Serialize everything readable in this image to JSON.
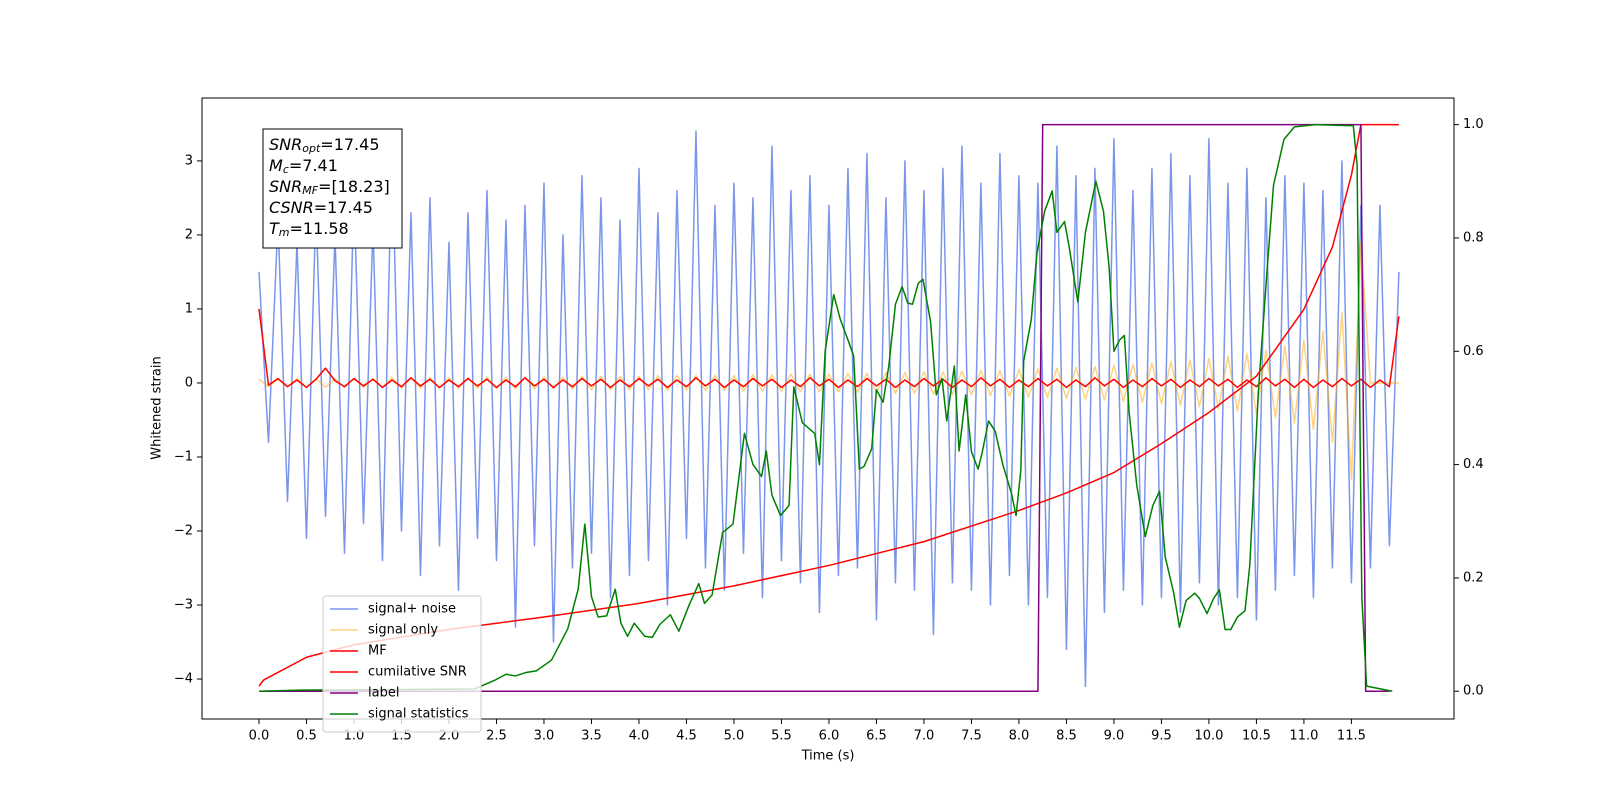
{
  "chart_data": {
    "type": "line",
    "xlabel": "Time (s)",
    "ylabel": "Whitened strain",
    "xlim": [
      -0.6,
      12.58
    ],
    "ylim": [
      -4.54,
      3.85
    ],
    "y2lim": [
      -0.049,
      1.047
    ],
    "xticks": [
      {
        "value": 0,
        "label": "0.0"
      },
      0.5,
      {
        "value": 1,
        "label": "1.0"
      },
      1.5,
      {
        "value": 2,
        "label": "2.0"
      },
      2.5,
      {
        "value": 3,
        "label": "3.0"
      },
      3.5,
      {
        "value": 4,
        "label": "4.0"
      },
      4.5,
      {
        "value": 5,
        "label": "5.0"
      },
      5.5,
      {
        "value": 6,
        "label": "6.0"
      },
      6.5,
      {
        "value": 7,
        "label": "7.0"
      },
      7.5,
      {
        "value": 8,
        "label": "8.0"
      },
      8.5,
      {
        "value": 9,
        "label": "9.0"
      },
      9.5,
      {
        "value": 10,
        "label": "10.0"
      },
      10.5,
      {
        "value": 11,
        "label": "11.0"
      },
      11.5
    ],
    "yticks": [
      {
        "value": -4,
        "label": "−4"
      },
      {
        "value": -3,
        "label": "−3"
      },
      {
        "value": -2,
        "label": "−2"
      },
      {
        "value": -1,
        "label": "−1"
      },
      0,
      1,
      2,
      3
    ],
    "y2ticks": [
      {
        "value": 0,
        "label": "0.0"
      },
      0.2,
      0.4,
      0.6,
      0.8,
      {
        "value": 1,
        "label": "1.0"
      }
    ],
    "annotations": [
      {
        "main": "SNR",
        "sub": "opt",
        "rest": "=17.45"
      },
      {
        "main": "M",
        "sub": "c",
        "rest": "=7.41"
      },
      {
        "main": "SNR",
        "sub": "MF",
        "rest": "=[18.23]"
      },
      {
        "main": "CSNR",
        "rest": "=17.45"
      },
      {
        "main": "T",
        "sub": "m",
        "rest": "=11.58"
      }
    ],
    "legend": "lower left",
    "x": [
      0.0,
      0.1,
      0.2,
      0.3,
      0.4,
      0.5,
      0.6,
      0.7,
      0.8,
      0.9,
      1.0,
      1.1,
      1.2,
      1.3,
      1.4,
      1.5,
      1.6,
      1.7,
      1.8,
      1.9,
      2.0,
      2.1,
      2.2,
      2.3,
      2.4,
      2.5,
      2.6,
      2.7,
      2.8,
      2.9,
      3.0,
      3.1,
      3.2,
      3.3,
      3.4,
      3.5,
      3.6,
      3.7,
      3.8,
      3.9,
      4.0,
      4.1,
      4.2,
      4.3,
      4.4,
      4.5,
      4.6,
      4.7,
      4.8,
      4.9,
      5.0,
      5.1,
      5.2,
      5.3,
      5.4,
      5.5,
      5.6,
      5.7,
      5.8,
      5.9,
      6.0,
      6.1,
      6.2,
      6.3,
      6.4,
      6.5,
      6.6,
      6.7,
      6.8,
      6.9,
      7.0,
      7.1,
      7.2,
      7.3,
      7.4,
      7.5,
      7.6,
      7.7,
      7.8,
      7.9,
      8.0,
      8.1,
      8.2,
      8.3,
      8.4,
      8.5,
      8.6,
      8.7,
      8.8,
      8.9,
      9.0,
      9.1,
      9.2,
      9.3,
      9.4,
      9.5,
      9.6,
      9.7,
      9.8,
      9.9,
      10.0,
      10.1,
      10.2,
      10.3,
      10.4,
      10.5,
      10.6,
      10.7,
      10.8,
      10.9,
      11.0,
      11.1,
      11.2,
      11.3,
      11.4,
      11.5,
      11.6,
      11.7,
      11.8,
      11.9,
      12.0
    ],
    "series": [
      {
        "name": "signal+ noise",
        "color": "royalblue",
        "alpha": 0.7,
        "values": [
          1.5,
          -0.8,
          2.2,
          -1.6,
          1.9,
          -2.1,
          2.4,
          -1.8,
          2.0,
          -2.3,
          2.6,
          -1.9,
          2.1,
          -2.4,
          3.2,
          -2.0,
          2.3,
          -2.6,
          2.5,
          -2.2,
          1.9,
          -2.8,
          2.3,
          -2.1,
          2.6,
          -2.4,
          2.2,
          -3.3,
          2.4,
          -2.2,
          2.7,
          -3.5,
          2.0,
          -2.5,
          2.8,
          -2.3,
          2.5,
          -2.9,
          2.2,
          -2.6,
          2.9,
          -2.4,
          2.3,
          -3.0,
          2.6,
          -2.1,
          3.4,
          -2.5,
          2.4,
          -2.8,
          2.7,
          -2.3,
          2.5,
          -2.9,
          3.2,
          -2.4,
          2.6,
          -2.7,
          2.8,
          -3.1,
          2.4,
          -2.6,
          2.9,
          -2.5,
          3.1,
          -3.2,
          2.5,
          -2.7,
          3.0,
          -2.8,
          2.6,
          -3.4,
          2.9,
          -2.7,
          3.2,
          -2.8,
          2.7,
          -3.0,
          3.1,
          -2.6,
          2.8,
          -3.0,
          2.7,
          -2.9,
          3.2,
          -3.6,
          2.8,
          -4.1,
          2.9,
          -3.1,
          3.3,
          -2.8,
          2.6,
          -3.0,
          2.9,
          -2.9,
          3.1,
          -3.1,
          2.8,
          -2.7,
          3.3,
          -3.0,
          2.7,
          -2.9,
          2.9,
          -3.2,
          2.5,
          -2.8,
          2.8,
          -2.6,
          2.7,
          -2.9,
          2.6,
          -2.5,
          3.0,
          -2.7,
          2.4,
          -2.5,
          2.4,
          -2.2,
          1.5
        ]
      },
      {
        "name": "signal only",
        "color": "orange",
        "alpha": 0.5,
        "values": [
          0.05,
          -0.05,
          0.05,
          -0.05,
          0.06,
          -0.06,
          0.06,
          -0.06,
          0.06,
          -0.06,
          0.06,
          -0.06,
          0.06,
          -0.06,
          0.07,
          -0.07,
          0.07,
          -0.07,
          0.07,
          -0.07,
          0.07,
          -0.07,
          0.07,
          -0.07,
          0.08,
          -0.08,
          0.08,
          -0.08,
          0.08,
          -0.08,
          0.08,
          -0.08,
          0.08,
          -0.08,
          0.09,
          -0.09,
          0.09,
          -0.09,
          0.09,
          -0.09,
          0.09,
          -0.09,
          0.1,
          -0.1,
          0.1,
          -0.1,
          0.1,
          -0.1,
          0.1,
          -0.1,
          0.1,
          -0.11,
          0.11,
          -0.11,
          0.11,
          -0.11,
          0.12,
          -0.12,
          0.12,
          -0.12,
          0.12,
          -0.12,
          0.13,
          -0.13,
          0.13,
          -0.13,
          0.14,
          -0.14,
          0.14,
          -0.14,
          0.15,
          -0.15,
          0.15,
          -0.16,
          0.16,
          -0.16,
          0.17,
          -0.17,
          0.17,
          -0.18,
          0.18,
          -0.19,
          0.19,
          -0.2,
          0.2,
          -0.21,
          0.21,
          -0.22,
          0.22,
          -0.23,
          0.24,
          -0.25,
          0.25,
          -0.26,
          0.27,
          -0.28,
          0.29,
          -0.3,
          0.31,
          -0.32,
          0.33,
          -0.35,
          0.36,
          -0.38,
          0.4,
          -0.42,
          0.44,
          -0.47,
          0.5,
          -0.54,
          0.58,
          -0.63,
          0.7,
          -0.8,
          0.95,
          -1.3,
          1.9,
          0,
          0,
          0,
          0
        ]
      },
      {
        "name": "MF",
        "color": "red",
        "values": [
          1.0,
          -0.03,
          0.06,
          -0.05,
          0.04,
          -0.06,
          0.05,
          0.2,
          0.03,
          -0.05,
          0.06,
          -0.04,
          0.05,
          -0.06,
          0.04,
          -0.05,
          0.07,
          -0.04,
          0.05,
          -0.06,
          0.04,
          -0.05,
          0.06,
          -0.04,
          0.05,
          -0.06,
          0.04,
          -0.05,
          0.07,
          -0.04,
          0.05,
          -0.06,
          0.04,
          -0.05,
          0.06,
          -0.04,
          0.05,
          -0.06,
          0.04,
          -0.05,
          0.06,
          -0.04,
          0.05,
          -0.06,
          0.04,
          -0.05,
          0.07,
          -0.04,
          0.05,
          -0.06,
          0.04,
          -0.05,
          0.06,
          -0.04,
          0.05,
          -0.06,
          0.04,
          -0.05,
          0.07,
          -0.04,
          0.05,
          -0.06,
          0.04,
          -0.05,
          0.06,
          -0.04,
          0.05,
          -0.06,
          0.04,
          -0.05,
          0.06,
          -0.04,
          0.05,
          -0.06,
          0.04,
          -0.05,
          0.07,
          -0.04,
          0.05,
          -0.06,
          0.04,
          -0.05,
          0.06,
          -0.04,
          0.05,
          -0.06,
          0.04,
          -0.05,
          0.07,
          -0.04,
          0.05,
          -0.06,
          0.04,
          -0.05,
          0.06,
          -0.04,
          0.05,
          -0.06,
          0.04,
          -0.05,
          0.06,
          -0.04,
          0.05,
          -0.06,
          0.04,
          -0.05,
          0.07,
          -0.04,
          0.05,
          -0.06,
          0.05,
          -0.06,
          0.04,
          -0.05,
          0.06,
          -0.04,
          0.05,
          -0.06,
          0.04,
          -0.05,
          0.9
        ]
      },
      {
        "name": "cumilative SNR",
        "color": "red",
        "axis": "y2",
        "x": [
          0,
          0.05,
          0.5,
          1,
          2,
          3,
          4,
          5,
          6,
          7,
          8,
          8.5,
          9,
          9.5,
          10,
          10.5,
          11,
          11.3,
          11.5,
          11.6,
          12.0
        ],
        "values": [
          0.009,
          0.02,
          0.06,
          0.082,
          0.109,
          0.131,
          0.155,
          0.186,
          0.222,
          0.264,
          0.319,
          0.35,
          0.386,
          0.437,
          0.492,
          0.556,
          0.674,
          0.784,
          0.911,
          1.0,
          1.0
        ]
      },
      {
        "name": "label",
        "color": "purple",
        "axis": "y2",
        "x": [
          0,
          8.2,
          8.25,
          11.6,
          11.65,
          11.9
        ],
        "values": [
          0,
          0,
          1,
          1,
          0,
          0
        ]
      },
      {
        "name": "signal statistics",
        "color": "green",
        "axis": "y2",
        "x": [
          0,
          0.42,
          2.27,
          2.49,
          2.6,
          2.7,
          2.81,
          2.92,
          3.08,
          3.25,
          3.36,
          3.43,
          3.5,
          3.57,
          3.66,
          3.75,
          3.81,
          3.88,
          3.95,
          4.06,
          4.14,
          4.22,
          4.33,
          4.42,
          4.53,
          4.63,
          4.69,
          4.77,
          4.88,
          4.99,
          5.11,
          5.2,
          5.29,
          5.34,
          5.4,
          5.49,
          5.58,
          5.63,
          5.72,
          5.85,
          5.9,
          5.96,
          6.05,
          6.12,
          6.2,
          6.26,
          6.32,
          6.37,
          6.45,
          6.5,
          6.57,
          6.63,
          6.7,
          6.77,
          6.83,
          6.88,
          6.94,
          6.99,
          7.07,
          7.13,
          7.19,
          7.24,
          7.32,
          7.37,
          7.44,
          7.5,
          7.57,
          7.61,
          7.68,
          7.75,
          7.83,
          7.92,
          7.97,
          8.02,
          8.05,
          8.13,
          8.19,
          8.27,
          8.35,
          8.4,
          8.48,
          8.53,
          8.62,
          8.7,
          8.81,
          8.89,
          8.95,
          9.0,
          9.06,
          9.11,
          9.16,
          9.24,
          9.33,
          9.41,
          9.48,
          9.54,
          9.63,
          9.69,
          9.76,
          9.85,
          9.9,
          9.98,
          10.05,
          10.11,
          10.17,
          10.23,
          10.3,
          10.38,
          10.43,
          10.52,
          10.61,
          10.68,
          10.79,
          10.9,
          11.12,
          11.52,
          11.56,
          11.61,
          11.66,
          11.93
        ],
        "values": [
          0,
          0.002,
          0.004,
          0.02,
          0.03,
          0.027,
          0.033,
          0.036,
          0.055,
          0.11,
          0.18,
          0.295,
          0.167,
          0.131,
          0.133,
          0.18,
          0.12,
          0.097,
          0.12,
          0.097,
          0.095,
          0.118,
          0.135,
          0.106,
          0.153,
          0.19,
          0.155,
          0.17,
          0.28,
          0.295,
          0.455,
          0.4,
          0.379,
          0.424,
          0.346,
          0.31,
          0.328,
          0.537,
          0.474,
          0.455,
          0.4,
          0.6,
          0.7,
          0.656,
          0.62,
          0.592,
          0.392,
          0.397,
          0.428,
          0.532,
          0.51,
          0.574,
          0.683,
          0.714,
          0.685,
          0.683,
          0.72,
          0.727,
          0.652,
          0.523,
          0.552,
          0.477,
          0.574,
          0.424,
          0.523,
          0.423,
          0.392,
          0.419,
          0.477,
          0.459,
          0.4,
          0.35,
          0.31,
          0.39,
          0.583,
          0.656,
          0.774,
          0.847,
          0.883,
          0.81,
          0.829,
          0.783,
          0.687,
          0.81,
          0.9,
          0.847,
          0.747,
          0.6,
          0.62,
          0.628,
          0.492,
          0.364,
          0.273,
          0.328,
          0.353,
          0.237,
          0.173,
          0.113,
          0.16,
          0.173,
          0.164,
          0.137,
          0.164,
          0.179,
          0.109,
          0.109,
          0.131,
          0.142,
          0.222,
          0.528,
          0.738,
          0.893,
          0.974,
          0.996,
          1.0,
          0.998,
          0.929,
          0.164,
          0.009,
          0.0
        ]
      }
    ]
  }
}
